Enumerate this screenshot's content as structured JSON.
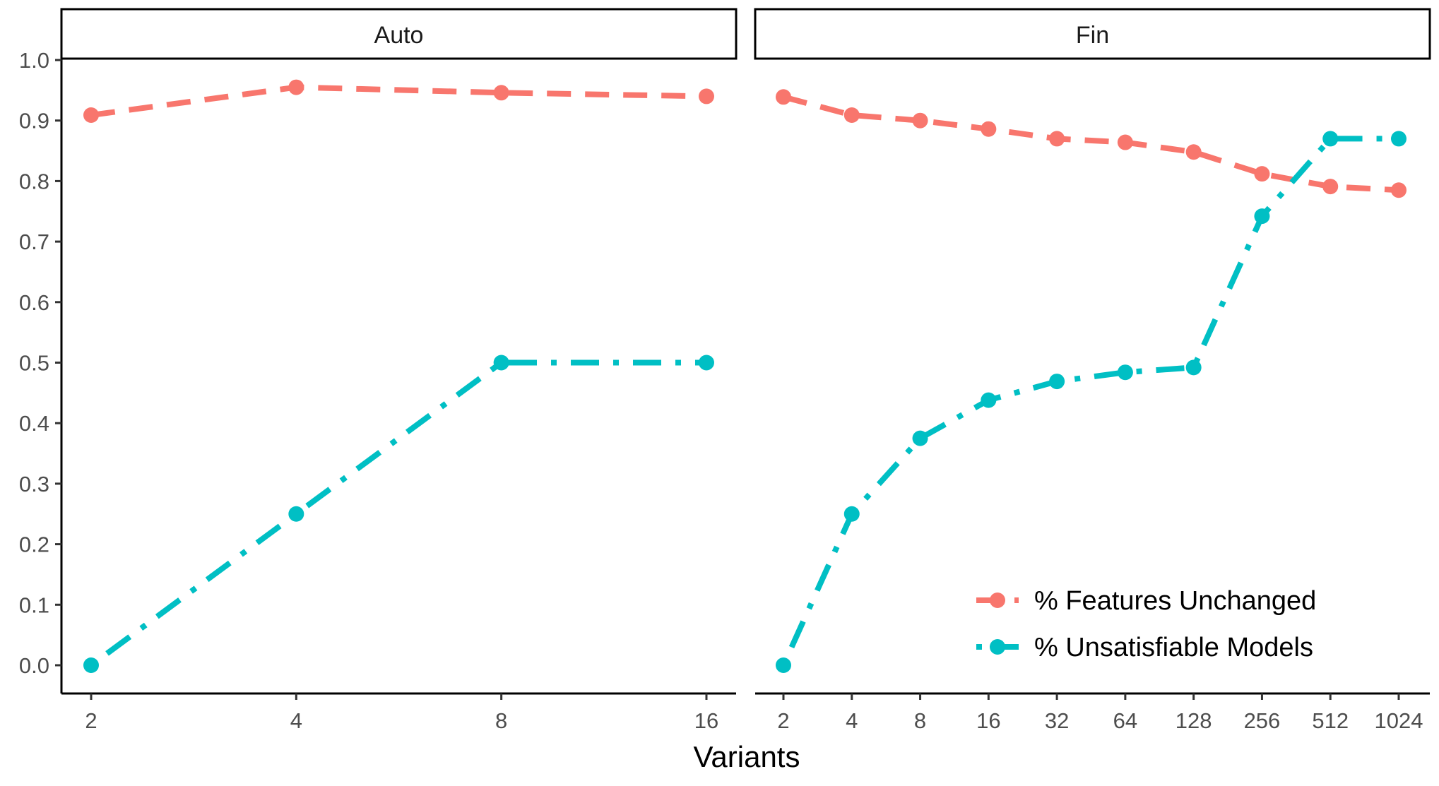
{
  "chart_data": {
    "type": "line",
    "xlabel": "Variants",
    "ylabel": "",
    "ylim": [
      0,
      1
    ],
    "y_ticks": [
      "0.0",
      "0.1",
      "0.2",
      "0.3",
      "0.4",
      "0.5",
      "0.6",
      "0.7",
      "0.8",
      "0.9",
      "1.0"
    ],
    "legend_position": "bottom-right",
    "grid": false,
    "series_styles": [
      {
        "name": "% Features Unchanged",
        "color": "#F8766D",
        "dash": "dashed"
      },
      {
        "name": "% Unsatisfiable Models",
        "color": "#00BFC4",
        "dash": "dotdash"
      }
    ],
    "panels": [
      {
        "title": "Auto",
        "categories": [
          "2",
          "4",
          "8",
          "16"
        ],
        "series": [
          {
            "name": "% Features Unchanged",
            "values": [
              0.909,
              0.955,
              0.946,
              0.94
            ]
          },
          {
            "name": "% Unsatisfiable Models",
            "values": [
              0.0,
              0.25,
              0.5,
              0.5
            ]
          }
        ]
      },
      {
        "title": "Fin",
        "categories": [
          "2",
          "4",
          "8",
          "16",
          "32",
          "64",
          "128",
          "256",
          "512",
          "1024"
        ],
        "series": [
          {
            "name": "% Features Unchanged",
            "values": [
              0.939,
              0.909,
              0.9,
              0.886,
              0.87,
              0.864,
              0.848,
              0.812,
              0.791,
              0.785
            ]
          },
          {
            "name": "% Unsatisfiable Models",
            "values": [
              0.0,
              0.25,
              0.375,
              0.438,
              0.469,
              0.484,
              0.492,
              0.742,
              0.87,
              0.87
            ]
          }
        ]
      }
    ]
  }
}
